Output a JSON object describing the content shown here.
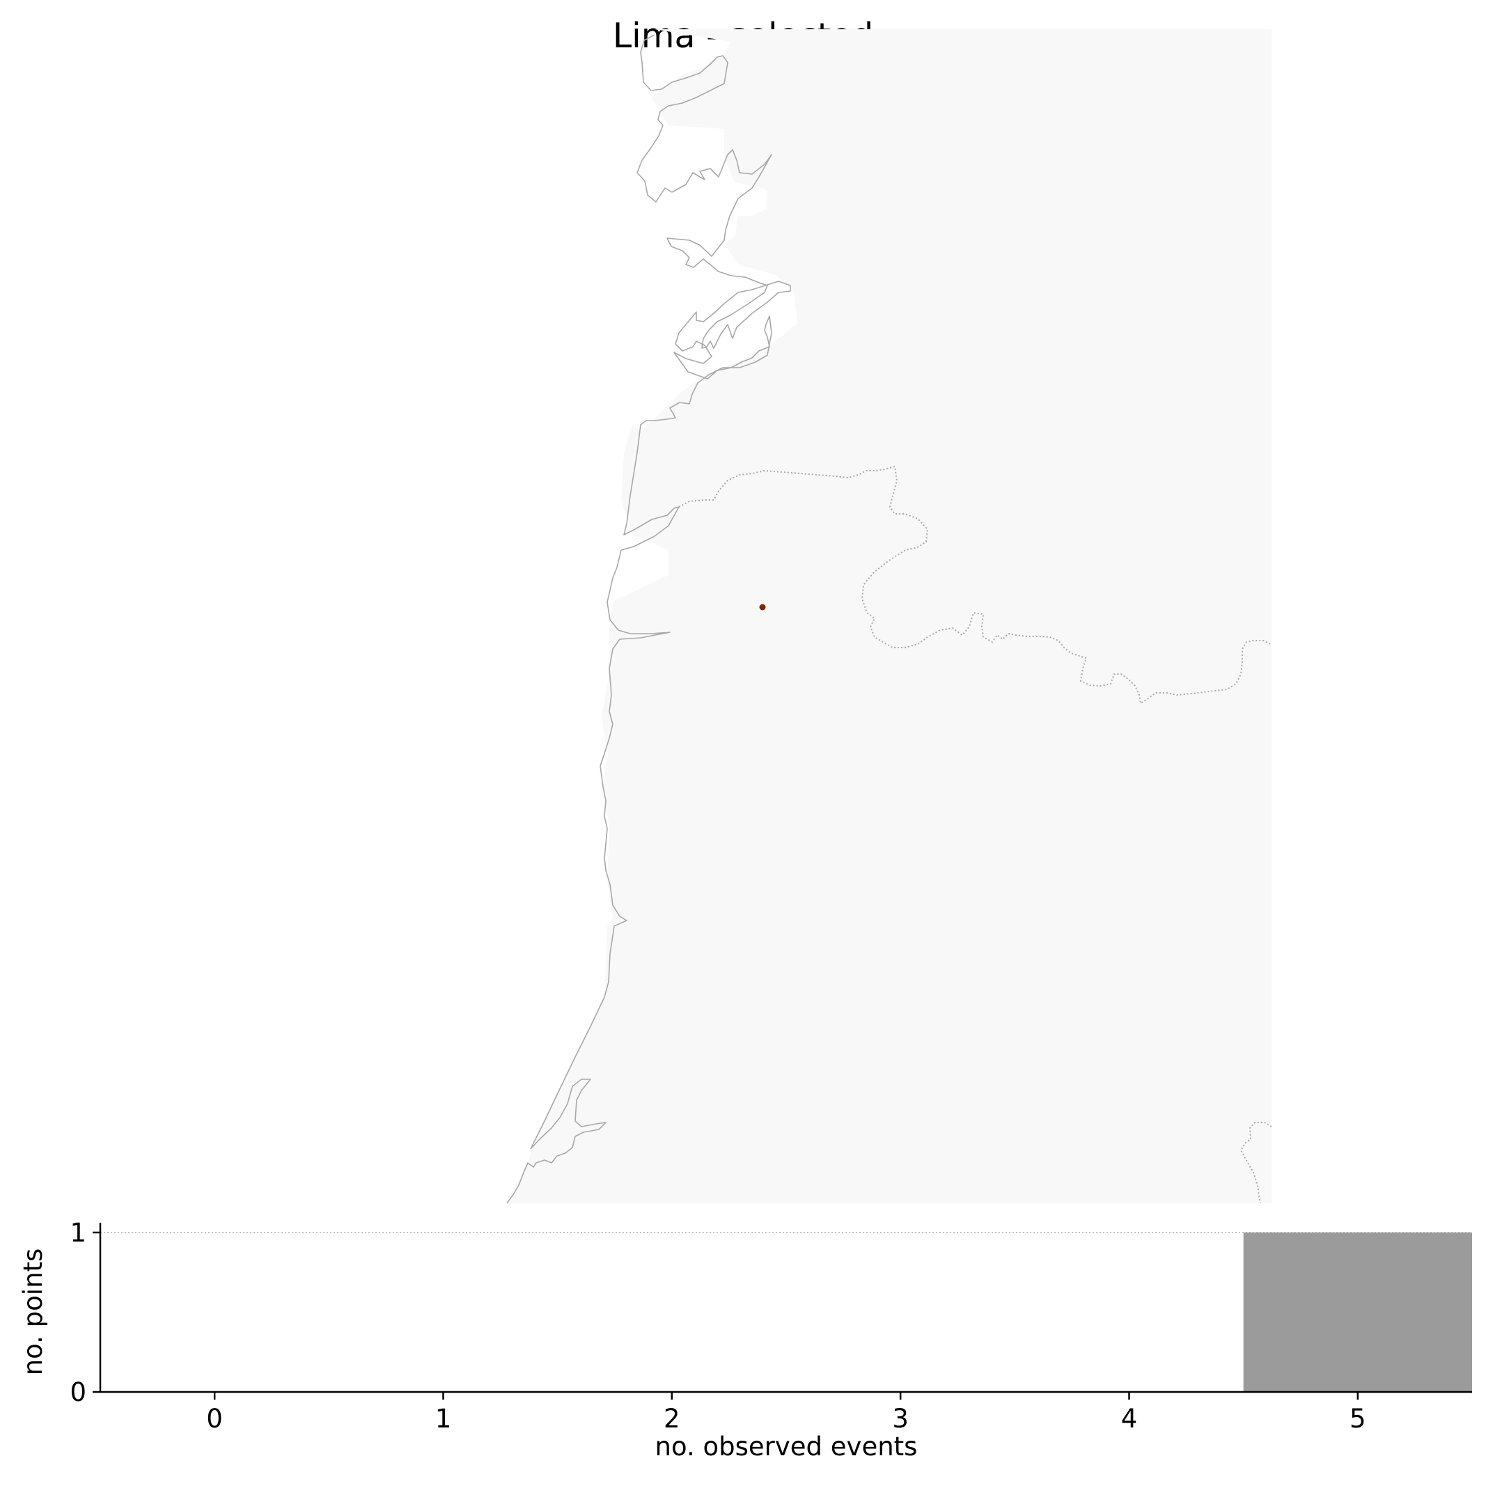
{
  "title": "Lima - selected",
  "colors": {
    "land": "#f8f8f8",
    "coastline": "#a8a8a8",
    "point": "#7f2704",
    "bar": "#9b9b9b",
    "axis": "#000000",
    "gridline": "#c0c0c0"
  },
  "map": {
    "title": "Lima - selected",
    "point_count": 1,
    "point_color": "#7f2704"
  },
  "chart_data": {
    "type": "bar",
    "categories": [
      "0",
      "1",
      "2",
      "3",
      "4",
      "5"
    ],
    "x": [
      0,
      1,
      2,
      3,
      4,
      5
    ],
    "values": [
      0,
      0,
      0,
      0,
      0,
      1
    ],
    "xlabel": "no. observed events",
    "ylabel": "no. points",
    "xlim": [
      -0.5,
      5.5
    ],
    "ylim": [
      0,
      1
    ],
    "yticks": [
      0,
      1
    ],
    "xticks": [
      0,
      1,
      2,
      3,
      4,
      5
    ],
    "reference_line": {
      "y": 1,
      "style": "dotted"
    },
    "bar_color": "#9b9b9b",
    "grid": false,
    "legend": "none"
  }
}
